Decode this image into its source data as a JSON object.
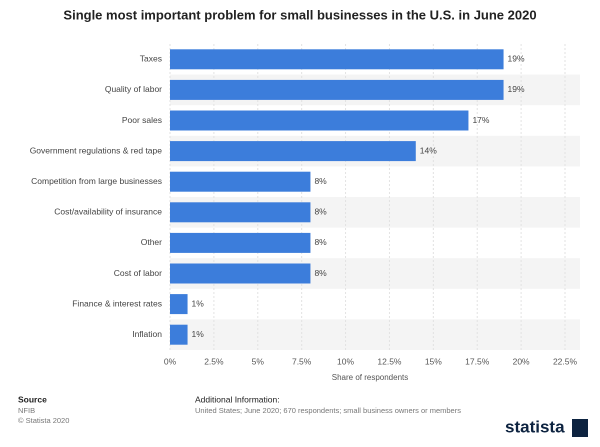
{
  "chart_data": {
    "type": "hbar",
    "title": "Single most important problem for small businesses in the U.S. in June 2020",
    "categories": [
      "Taxes",
      "Quality of labor",
      "Poor sales",
      "Government regulations & red tape",
      "Competition from large businesses",
      "Cost/availability of insurance",
      "Other",
      "Cost of labor",
      "Finance & interest rates",
      "Inflation"
    ],
    "values": [
      19,
      19,
      17,
      14,
      8,
      8,
      8,
      8,
      1,
      1
    ],
    "value_labels": [
      "19%",
      "19%",
      "17%",
      "14%",
      "8%",
      "8%",
      "8%",
      "8%",
      "1%",
      "1%"
    ],
    "color": "#3c7ddb",
    "xlim": [
      0,
      22.5
    ],
    "xticks": [
      {
        "value": 0,
        "label": "0%"
      },
      {
        "value": 2.5,
        "label": "2.5%"
      },
      {
        "value": 5,
        "label": "5%"
      },
      {
        "value": 7.5,
        "label": "7.5%"
      },
      {
        "value": 10,
        "label": "10%"
      },
      {
        "value": 12.5,
        "label": "12.5%"
      },
      {
        "value": 15,
        "label": "15%"
      },
      {
        "value": 17.5,
        "label": "17.5%"
      },
      {
        "value": 20,
        "label": "20%"
      },
      {
        "value": 22.5,
        "label": "22.5%"
      }
    ],
    "xlabel": "Share of respondents",
    "grid": true
  },
  "footer": {
    "source_title": "Source",
    "source": "NFIB",
    "copyright": "© Statista 2020",
    "info_title": "Additional Information:",
    "info": "United States; June 2020; 670 respondents; small business owners or members",
    "logo": "statista"
  }
}
